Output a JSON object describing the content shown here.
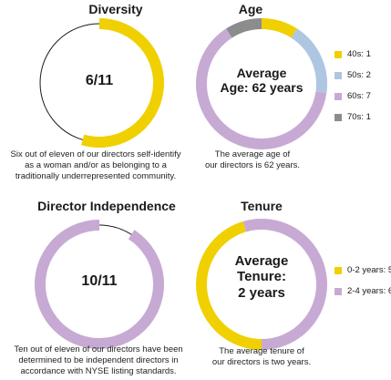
{
  "colors": {
    "yellow": "#F0D000",
    "purple": "#C7AAD4",
    "blue": "#AFC6E2",
    "gray": "#8C8C8C",
    "outline": "#1a1a1a"
  },
  "chart_data": [
    {
      "type": "pie",
      "title": "Diversity",
      "center_label": "6/11",
      "caption": [
        "Six out of eleven of our directors self-identify",
        "as a woman and/or as belonging to a",
        "traditionally underrepresented community."
      ],
      "slices": [
        {
          "value": 6,
          "color": "#F0D000"
        },
        {
          "value": 5,
          "color": "none"
        }
      ]
    },
    {
      "type": "pie",
      "title": "Age",
      "center_label": [
        "Average",
        "Age: 62 years"
      ],
      "caption": [
        "The average age of",
        "our directors is 62 years."
      ],
      "slices": [
        {
          "name": "40s: 1",
          "value": 1,
          "color": "#F0D000"
        },
        {
          "name": "50s: 2",
          "value": 2,
          "color": "#AFC6E2"
        },
        {
          "name": "60s: 7",
          "value": 7,
          "color": "#C7AAD4"
        },
        {
          "name": "70s: 1",
          "value": 1,
          "color": "#8C8C8C"
        }
      ],
      "legend": "right"
    },
    {
      "type": "pie",
      "title": "Director Independence",
      "center_label": "10/11",
      "caption": [
        "Ten out of eleven of our directors have been",
        "determined to be independent directors in",
        "accordance with NYSE listing standards."
      ],
      "slices": [
        {
          "value": 10,
          "color": "#C7AAD4"
        },
        {
          "value": 1,
          "color": "none"
        }
      ]
    },
    {
      "type": "pie",
      "title": "Tenure",
      "center_label": [
        "Average",
        "Tenure:",
        "2 years"
      ],
      "caption": [
        "The average tenure of",
        "our directors is two years."
      ],
      "slices": [
        {
          "name": "0-2 years: 5",
          "value": 5,
          "color": "#F0D000"
        },
        {
          "name": "2-4 years: 6",
          "value": 6,
          "color": "#C7AAD4"
        }
      ],
      "legend": "right"
    }
  ]
}
